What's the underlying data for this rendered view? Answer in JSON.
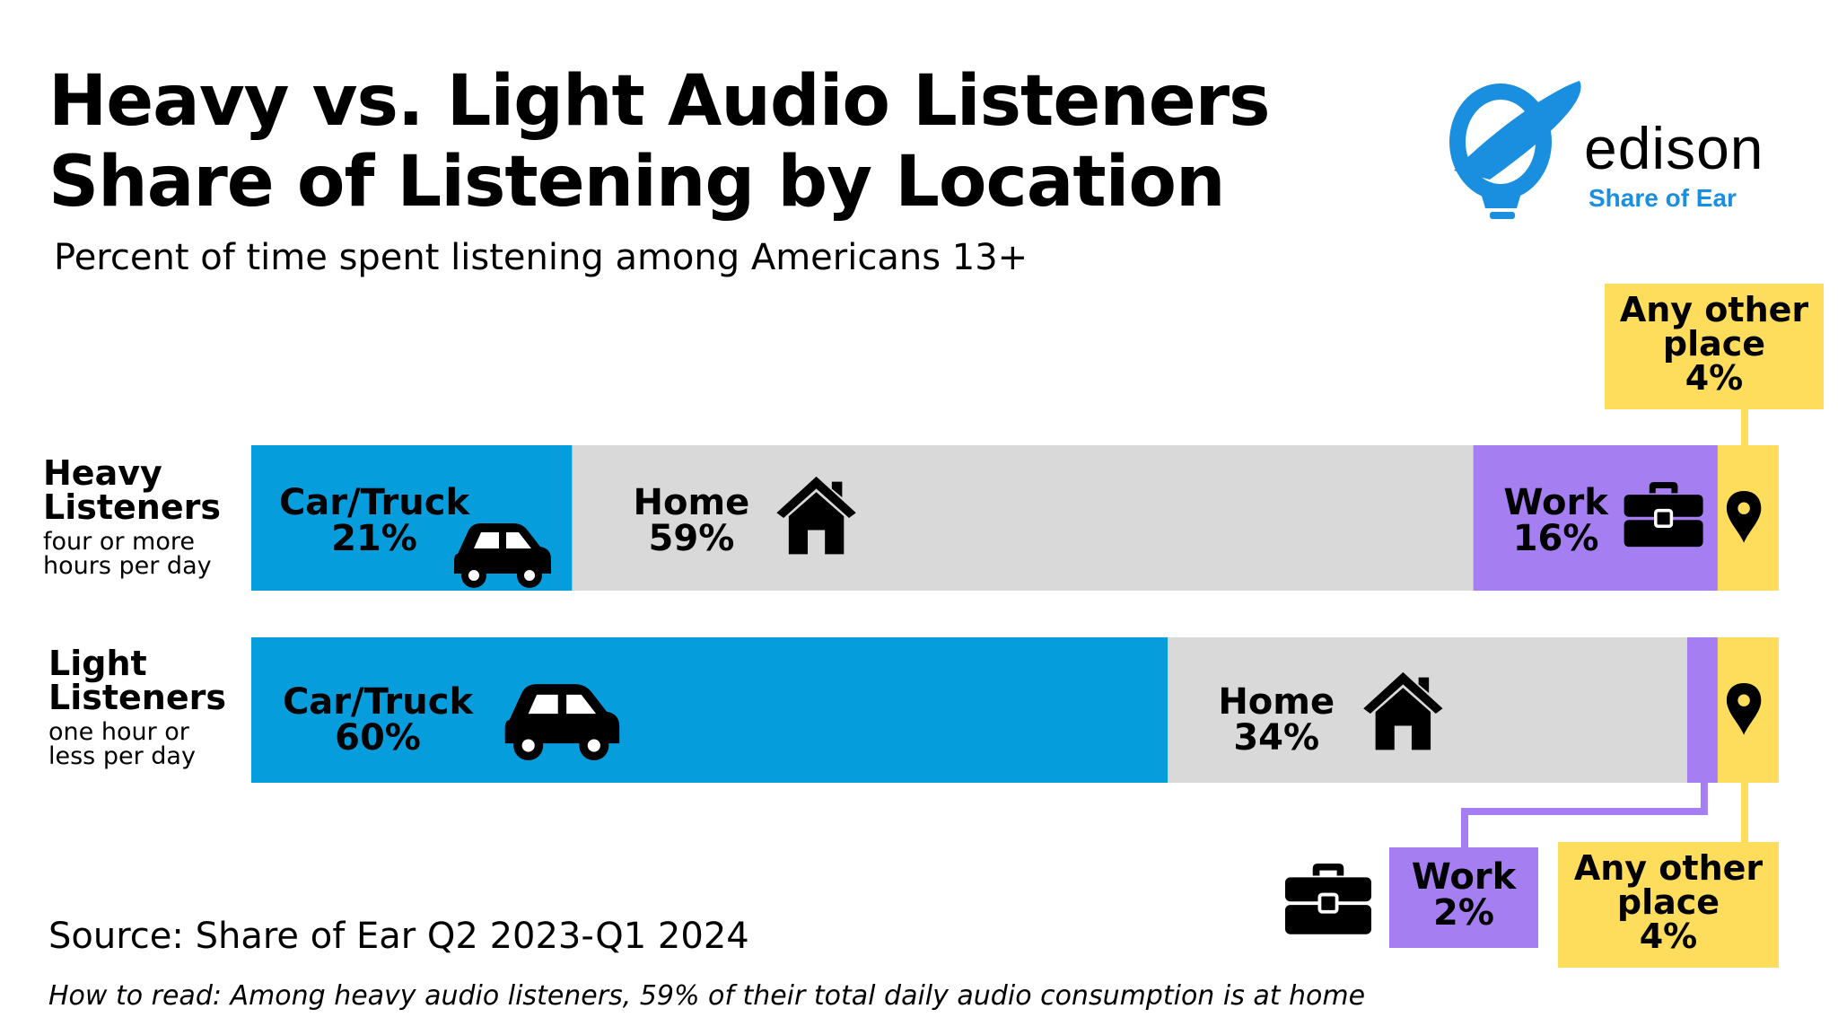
{
  "title_line1": "Heavy vs. Light Audio Listeners",
  "title_line2": "Share of Listening by Location",
  "subtitle": "Percent of time spent listening among Americans 13+",
  "source": "Source: Share of Ear Q2 2023-Q1 2024",
  "how_to_read": "How to read: Among heavy audio listeners, 59% of their total daily audio consumption is at home",
  "logo": {
    "word": "edison",
    "tag": "Share of Ear"
  },
  "colors": {
    "car": "#069ddd",
    "home": "#d9d9d9",
    "work": "#a57ff2",
    "other": "#ffdd5c"
  },
  "icons": {
    "car": "car-icon",
    "home": "house-icon",
    "work": "toolbox-icon",
    "other": "map-pin-icon"
  },
  "rows": [
    {
      "label": "Heavy",
      "label2": "Listeners",
      "sub1": "four or more",
      "sub2": "hours per day"
    },
    {
      "label": "Light",
      "label2": "Listeners",
      "sub1": "one hour or",
      "sub2": "less per day"
    }
  ],
  "chart_data": {
    "type": "bar",
    "stacked": "horizontal",
    "percent_total": 100,
    "categories": [
      "Heavy Listeners",
      "Light Listeners"
    ],
    "series": [
      {
        "name": "Car/Truck",
        "values": [
          21,
          60
        ],
        "color": "#069ddd",
        "labels": [
          {
            "name": "Car/Truck",
            "pct": "21%"
          },
          {
            "name": "Car/Truck",
            "pct": "60%"
          }
        ]
      },
      {
        "name": "Home",
        "values": [
          59,
          34
        ],
        "color": "#d9d9d9",
        "labels": [
          {
            "name": "Home",
            "pct": "59%"
          },
          {
            "name": "Home",
            "pct": "34%"
          }
        ]
      },
      {
        "name": "Work",
        "values": [
          16,
          2
        ],
        "color": "#a57ff2",
        "labels": [
          {
            "name": "Work",
            "pct": "16%"
          },
          {
            "name": "Work",
            "pct": "2%"
          }
        ]
      },
      {
        "name": "Any other place",
        "values": [
          4,
          4
        ],
        "color": "#ffdd5c",
        "labels": [
          {
            "name": "Any other place",
            "pct": "4%"
          },
          {
            "name": "Any other place",
            "pct": "4%"
          }
        ]
      }
    ]
  }
}
